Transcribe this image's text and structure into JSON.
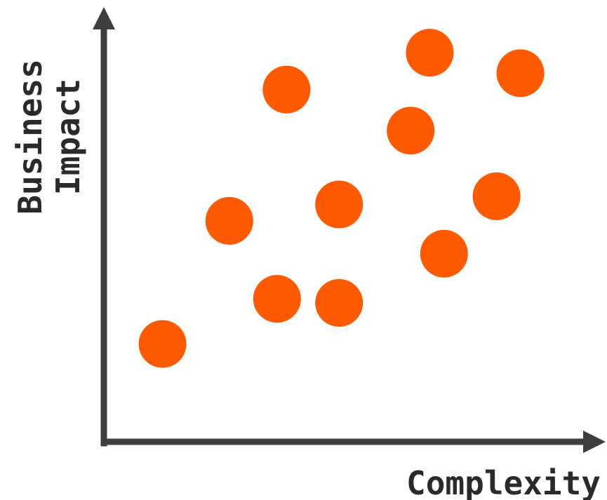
{
  "chart_data": {
    "type": "scatter",
    "title": "",
    "xlabel": "Complexity",
    "ylabel_lines": [
      "Business",
      "Impact"
    ],
    "xlim": [
      0,
      100
    ],
    "ylim": [
      0,
      100
    ],
    "grid": false,
    "ticks": false,
    "marker_color": "#ff5a00",
    "axis_color": "#3f3f3f",
    "points": [
      {
        "x": 12,
        "y": 23
      },
      {
        "x": 26,
        "y": 53
      },
      {
        "x": 36,
        "y": 34
      },
      {
        "x": 38,
        "y": 85
      },
      {
        "x": 49,
        "y": 33
      },
      {
        "x": 49,
        "y": 57
      },
      {
        "x": 64,
        "y": 75
      },
      {
        "x": 71,
        "y": 45
      },
      {
        "x": 68,
        "y": 94
      },
      {
        "x": 82,
        "y": 59
      },
      {
        "x": 87,
        "y": 89
      }
    ]
  }
}
